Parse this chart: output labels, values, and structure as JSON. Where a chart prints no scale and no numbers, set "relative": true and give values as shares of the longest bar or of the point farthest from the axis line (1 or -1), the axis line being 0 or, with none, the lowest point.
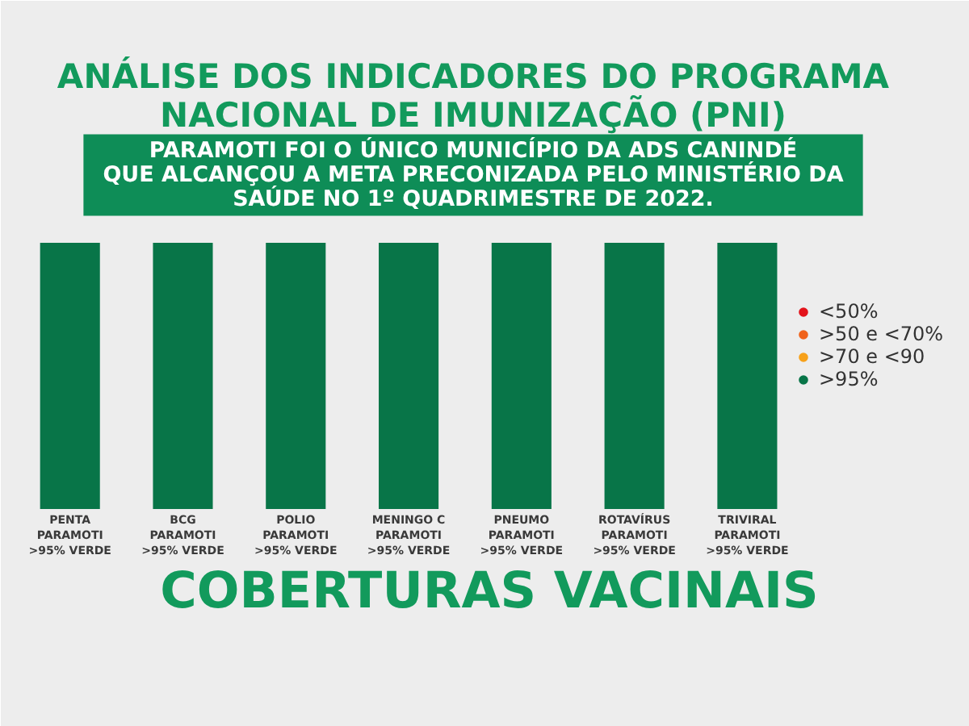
{
  "chart_data": {
    "type": "bar",
    "title": "ANÁLISE DOS INDICADORES DO PROGRAMA\nNACIONAL DE IMUNIZAÇÃO (PNI)",
    "subtitle": "PARAMOTI FOI O ÚNICO MUNICÍPIO DA ADS CANINDÉ\nQUE ALCANÇOU A META PRECONIZADA PELO MINISTÉRIO DA\nSAÚDE NO 1º QUADRIMESTRE DE 2022.",
    "xlabel": "COBERTURAS VACINAIS",
    "categories": [
      "PENTA\nPARAMOTI\n>95% VERDE",
      "BCG\nPARAMOTI\n>95% VERDE",
      "POLIO\nPARAMOTI\n>95% VERDE",
      "MENINGO C\nPARAMOTI\n>95% VERDE",
      "PNEUMO\nPARAMOTI\n>95% VERDE",
      "ROTAVÍRUS\nPARAMOTI\n>95% VERDE",
      "TRIVIRAL\nPARAMOTI\n>95% VERDE"
    ],
    "series": [
      {
        "name": "<50%",
        "color": "#e3131b",
        "values": [
          null,
          null,
          null,
          null,
          null,
          null,
          null
        ]
      },
      {
        "name": ">50 e <70%",
        "color": "#f0621a",
        "values": [
          null,
          null,
          null,
          null,
          null,
          null,
          null
        ]
      },
      {
        "name": ">70 e <90",
        "color": "#f7a11a",
        "values": [
          null,
          null,
          null,
          null,
          null,
          null,
          null
        ]
      },
      {
        "name": ">95%",
        "color": "#087548",
        "values": [
          1,
          1,
          1,
          1,
          1,
          1,
          1
        ]
      }
    ],
    "stacked": true,
    "relative": true,
    "grid": false,
    "legend": "right"
  }
}
